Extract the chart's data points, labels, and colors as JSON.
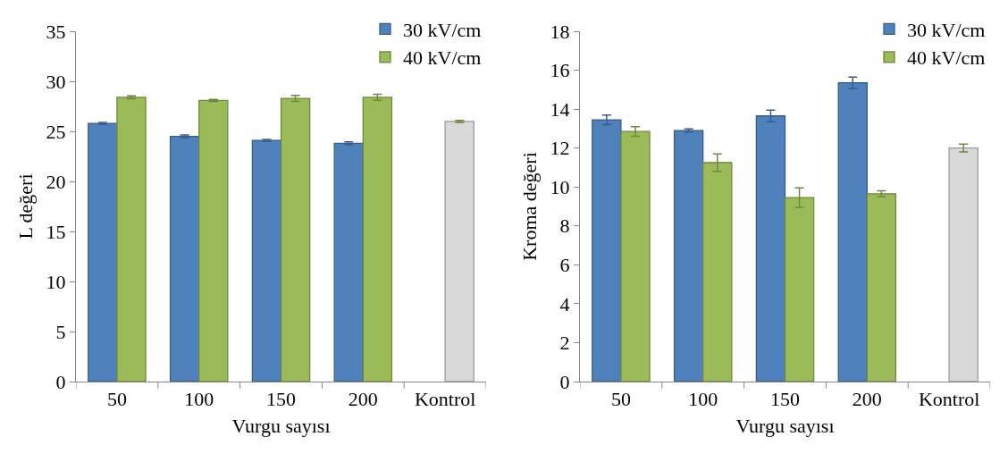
{
  "chart_data": [
    {
      "type": "bar",
      "ylabel": "L değeri",
      "xlabel": "Vurgu sayısı",
      "categories": [
        "50",
        "100",
        "150",
        "200",
        "Kontrol"
      ],
      "ylim": [
        0,
        35
      ],
      "yticks": [
        0,
        5,
        10,
        15,
        20,
        25,
        30,
        35
      ],
      "grid": false,
      "legend": "top right",
      "series": [
        {
          "name": "30 kV/cm",
          "color": "#4f81bd",
          "values": [
            25.8,
            24.5,
            24.1,
            23.8,
            null
          ],
          "errors": [
            0.1,
            0.15,
            0.1,
            0.15,
            null
          ]
        },
        {
          "name": "40 kV/cm",
          "color": "#9bbb59",
          "colors": [
            "#9bbb59",
            "#9bbb59",
            "#9bbb59",
            "#9bbb59",
            "#d9d9d9"
          ],
          "values": [
            28.4,
            28.1,
            28.3,
            28.4,
            26.0
          ],
          "errors": [
            0.15,
            0.1,
            0.3,
            0.3,
            0.1
          ]
        }
      ]
    },
    {
      "type": "bar",
      "ylabel": "Kroma değeri",
      "xlabel": "Vurgu sayısı",
      "categories": [
        "50",
        "100",
        "150",
        "200",
        "Kontrol"
      ],
      "ylim": [
        0,
        18
      ],
      "yticks": [
        0,
        2,
        4,
        6,
        8,
        10,
        12,
        14,
        16,
        18
      ],
      "grid": false,
      "legend": "top right",
      "series": [
        {
          "name": "30 kV/cm",
          "color": "#4f81bd",
          "values": [
            13.45,
            12.9,
            13.65,
            15.35,
            null
          ],
          "errors": [
            0.25,
            0.08,
            0.3,
            0.3,
            null
          ]
        },
        {
          "name": "40 kV/cm",
          "color": "#9bbb59",
          "colors": [
            "#9bbb59",
            "#9bbb59",
            "#9bbb59",
            "#9bbb59",
            "#d9d9d9"
          ],
          "values": [
            12.85,
            11.25,
            9.45,
            9.65,
            12.0
          ],
          "errors": [
            0.25,
            0.45,
            0.5,
            0.15,
            0.2
          ]
        }
      ]
    }
  ]
}
